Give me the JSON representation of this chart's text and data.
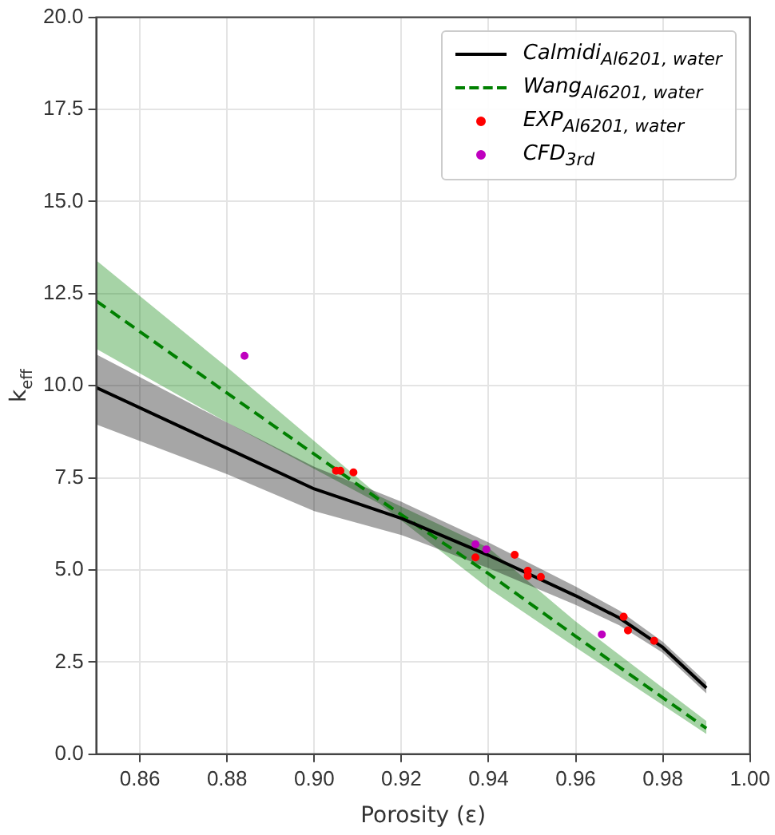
{
  "chart_data": {
    "type": "line",
    "xlabel": "Porosity (ε)",
    "ylabel": "k$_{eff}$",
    "xlim": [
      0.85,
      1.0
    ],
    "ylim": [
      0,
      20
    ],
    "xticks": [
      {
        "value": 0.86,
        "label": "0.86"
      },
      {
        "value": 0.88,
        "label": "0.88"
      },
      {
        "value": 0.9,
        "label": "0.90"
      },
      {
        "value": 0.92,
        "label": "0.92"
      },
      {
        "value": 0.94,
        "label": "0.94"
      },
      {
        "value": 0.96,
        "label": "0.96"
      },
      {
        "value": 0.98,
        "label": "0.98"
      },
      {
        "value": 1.0,
        "label": "1.00"
      }
    ],
    "yticks": [
      {
        "value": 0,
        "label": "0.0"
      },
      {
        "value": 2.5,
        "label": "2.5"
      },
      {
        "value": 5,
        "label": "5.0"
      },
      {
        "value": 7.5,
        "label": "7.5"
      },
      {
        "value": 10,
        "label": "10.0"
      },
      {
        "value": 12.5,
        "label": "12.5"
      },
      {
        "value": 15,
        "label": "15.0"
      },
      {
        "value": 17.5,
        "label": "17.5"
      },
      {
        "value": 20,
        "label": "20.0"
      }
    ],
    "grid": true,
    "legend": "top right",
    "series": [
      {
        "name": "Calmidi$_{Al6201, water}$",
        "color": "#000000",
        "line_style": "solid",
        "marker": "none",
        "x": [
          0.85,
          0.88,
          0.9,
          0.92,
          0.94,
          0.96,
          0.97,
          0.98,
          0.99
        ],
        "values": [
          9.95,
          8.3,
          7.2,
          6.4,
          5.4,
          4.3,
          3.7,
          2.9,
          1.8
        ],
        "lower": [
          8.95,
          7.6,
          6.6,
          5.95,
          5.05,
          4.05,
          3.5,
          2.75,
          1.65
        ],
        "upper": [
          10.85,
          9.0,
          7.8,
          6.85,
          5.75,
          4.55,
          3.9,
          3.05,
          1.95
        ]
      },
      {
        "name": "Wang$_{Al6201, water}$",
        "color": "#008000",
        "line_style": "dashed",
        "marker": "none",
        "x": [
          0.85,
          0.88,
          0.915,
          0.94,
          0.96,
          0.99
        ],
        "values": [
          12.3,
          9.8,
          6.9,
          4.9,
          3.2,
          0.7
        ],
        "lower": [
          11.0,
          9.0,
          6.8,
          4.5,
          2.9,
          0.55
        ],
        "upper": [
          13.4,
          10.5,
          7.0,
          5.6,
          3.6,
          0.9
        ]
      },
      {
        "name": "EXP$_{Al6201, water}$",
        "type": "scatter",
        "color": "#ff0000",
        "marker": "circle",
        "x": [
          0.905,
          0.906,
          0.909,
          0.937,
          0.946,
          0.949,
          0.949,
          0.952,
          0.971,
          0.972,
          0.978
        ],
        "values": [
          7.69,
          7.69,
          7.65,
          5.34,
          5.41,
          4.98,
          4.84,
          4.81,
          3.73,
          3.36,
          3.08
        ]
      },
      {
        "name": "CFD$_{3rd}$",
        "type": "scatter",
        "color": "#bf00bf",
        "marker": "circle",
        "x": [
          0.884,
          0.937,
          0.9395,
          0.966
        ],
        "values": [
          10.81,
          5.7,
          5.56,
          3.25
        ]
      }
    ]
  }
}
